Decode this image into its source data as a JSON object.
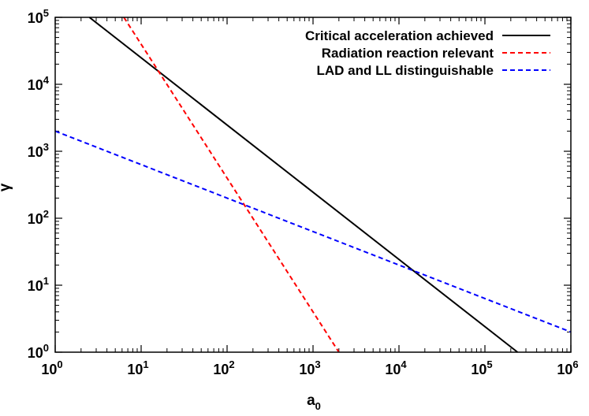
{
  "chart_data": {
    "type": "line",
    "xlabel": {
      "base": "a",
      "sub": "0"
    },
    "ylabel": "γ",
    "xscale": "log",
    "yscale": "log",
    "xlim": [
      1,
      1000000
    ],
    "ylim": [
      1,
      100000
    ],
    "grid": false,
    "legend_position": "top-right",
    "x_ticks": [
      {
        "base": "10",
        "exp": "0",
        "value": 1
      },
      {
        "base": "10",
        "exp": "1",
        "value": 10
      },
      {
        "base": "10",
        "exp": "2",
        "value": 100
      },
      {
        "base": "10",
        "exp": "3",
        "value": 1000
      },
      {
        "base": "10",
        "exp": "4",
        "value": 10000
      },
      {
        "base": "10",
        "exp": "5",
        "value": 100000
      },
      {
        "base": "10",
        "exp": "6",
        "value": 1000000
      }
    ],
    "y_ticks": [
      {
        "base": "10",
        "exp": "0",
        "value": 1
      },
      {
        "base": "10",
        "exp": "1",
        "value": 10
      },
      {
        "base": "10",
        "exp": "2",
        "value": 100
      },
      {
        "base": "10",
        "exp": "3",
        "value": 1000
      },
      {
        "base": "10",
        "exp": "4",
        "value": 10000
      },
      {
        "base": "10",
        "exp": "5",
        "value": 100000
      }
    ],
    "series": [
      {
        "name": "Critical acceleration achieved",
        "color": "#000000",
        "dash": "solid",
        "points": [
          [
            2.5,
            100000
          ],
          [
            240000,
            1
          ]
        ]
      },
      {
        "name": "Radiation reaction relevant",
        "color": "#ff0000",
        "dash": "dashed",
        "points": [
          [
            6.3,
            100000
          ],
          [
            2000,
            1
          ]
        ]
      },
      {
        "name": "LAD and LL distinguishable",
        "color": "#0000ff",
        "dash": "dashed",
        "points": [
          [
            1,
            2000
          ],
          [
            1000000,
            2
          ]
        ]
      }
    ]
  }
}
